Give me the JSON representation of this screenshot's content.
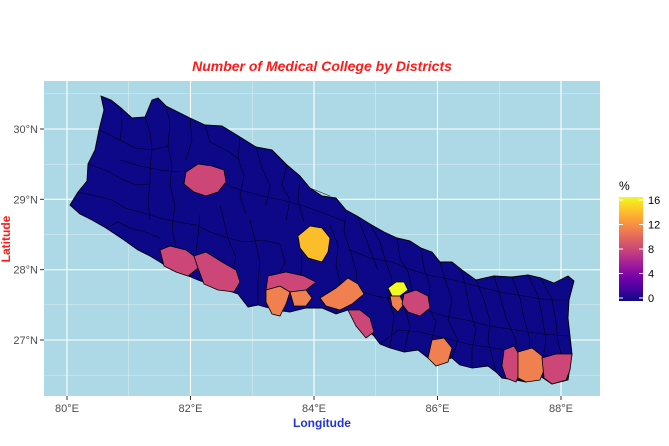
{
  "title": "Number of Medical College by Districts",
  "title_color": "#ff1a1a",
  "xlabel": "Longitude",
  "xlabel_color": "#2233dd",
  "ylabel": "Latitude",
  "ylabel_color": "#ff1a1a",
  "panel_background": "#add8e6",
  "x_ticks": [
    {
      "value": 80,
      "label": "80°E"
    },
    {
      "value": 82,
      "label": "82°E"
    },
    {
      "value": 84,
      "label": "84°E"
    },
    {
      "value": 86,
      "label": "86°E"
    },
    {
      "value": 88,
      "label": "88°E"
    }
  ],
  "y_ticks": [
    {
      "value": 27,
      "label": "27°N"
    },
    {
      "value": 28,
      "label": "28°N"
    },
    {
      "value": 29,
      "label": "29°N"
    },
    {
      "value": 30,
      "label": "30°N"
    }
  ],
  "legend": {
    "title": "%",
    "labels": [
      {
        "value": 16,
        "label": "16"
      },
      {
        "value": 12,
        "label": "12"
      },
      {
        "value": 8,
        "label": "8"
      },
      {
        "value": 4,
        "label": "4"
      },
      {
        "value": 0,
        "label": "0"
      }
    ],
    "colors": [
      "#0d0887",
      "#46039f",
      "#7201a8",
      "#9c179e",
      "#bd3786",
      "#d8576b",
      "#ed7953",
      "#fb9f3a",
      "#fdca26",
      "#f0f921"
    ]
  },
  "chart_data": {
    "type": "choropleth",
    "title": "Number of Medical College by Districts",
    "xlabel": "Longitude",
    "ylabel": "Latitude",
    "xlim": [
      79.8,
      88.6
    ],
    "ylim": [
      26.2,
      30.7
    ],
    "grid": true,
    "legend_placement": "right",
    "value_range": [
      0,
      16
    ],
    "base_value": 0,
    "highlighted_regions": [
      {
        "value": 6,
        "lon": 82.2,
        "lat": 29.25
      },
      {
        "value": 6,
        "lon": 81.85,
        "lat": 28.1
      },
      {
        "value": 6,
        "lon": 82.35,
        "lat": 27.95
      },
      {
        "value": 6,
        "lon": 83.65,
        "lat": 27.8
      },
      {
        "value": 6,
        "lon": 84.7,
        "lat": 27.2
      },
      {
        "value": 6,
        "lon": 85.6,
        "lat": 27.55
      },
      {
        "value": 6,
        "lon": 87.2,
        "lat": 26.65
      },
      {
        "value": 6,
        "lon": 87.95,
        "lat": 26.7
      },
      {
        "value": 11,
        "lon": 83.95,
        "lat": 27.55
      },
      {
        "value": 11,
        "lon": 84.45,
        "lat": 27.6
      },
      {
        "value": 11,
        "lon": 85.45,
        "lat": 27.55
      },
      {
        "value": 11,
        "lon": 86.0,
        "lat": 26.85
      },
      {
        "value": 11,
        "lon": 87.5,
        "lat": 26.65
      },
      {
        "value": 13,
        "lon": 84.0,
        "lat": 28.35
      },
      {
        "value": 16,
        "lon": 85.35,
        "lat": 27.72
      }
    ]
  }
}
